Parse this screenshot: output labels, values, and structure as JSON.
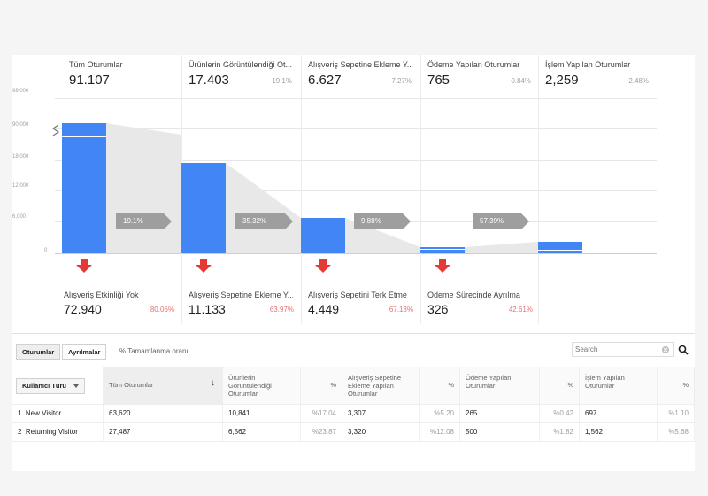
{
  "stages": [
    {
      "label": "Tüm Oturumlar",
      "value": "91.107",
      "pct": ""
    },
    {
      "label": "Ürünlerin Görüntülendiği Ot...",
      "value": "17.403",
      "pct": "19.1%"
    },
    {
      "label": "Alışveriş Sepetine Ekleme Y...",
      "value": "6.627",
      "pct": "7.27%"
    },
    {
      "label": "Ödeme Yapılan Oturumlar",
      "value": "765",
      "pct": "0.84%"
    },
    {
      "label": "İşlem Yapılan Oturumlar",
      "value": "2,259",
      "pct": "2.48%"
    }
  ],
  "axis_ticks": [
    "98,000",
    "90,000",
    "18,000",
    "12,000",
    "6,000",
    "0"
  ],
  "progress_tags": [
    "19.1%",
    "35.32%",
    "9.88%",
    "57.39%"
  ],
  "exits": [
    {
      "label": "Alışveriş Etkinliği Yok",
      "value": "72.940",
      "pct": "80.06%"
    },
    {
      "label": "Alışveriş Sepetine Ekleme Y...",
      "value": "11.133",
      "pct": "63.97%"
    },
    {
      "label": "Alışveriş Sepetini Terk Etme",
      "value": "4.449",
      "pct": "67.13%"
    },
    {
      "label": "Ödeme Sürecinde Ayrılma",
      "value": "326",
      "pct": "42.61%"
    }
  ],
  "toolbar": {
    "tab_sessions": "Oturumlar",
    "tab_exits": "Ayrılmalar",
    "completion_rate": "% Tamamlanma oranı",
    "search_placeholder": "Search"
  },
  "table": {
    "user_type_dropdown": "Kullanıcı Türü",
    "headers": [
      "Tüm Oturumlar",
      "Ürünlerin Görüntülendiği Oturumlar",
      "%",
      "Alışveriş Sepetine Ekleme Yapılan Oturumlar",
      "%",
      "Ödeme Yapılan Oturumlar",
      "%",
      "İşlem Yapılan Oturumlar",
      "%"
    ],
    "rows": [
      {
        "index": "1",
        "type": "New Visitor",
        "all": "63,620",
        "viewed": "10,841",
        "viewed_pct": "%17.04",
        "cart": "3,307",
        "cart_pct": "%5.20",
        "checkout": "265",
        "checkout_pct": "%0.42",
        "trans": "697",
        "trans_pct": "%1.10"
      },
      {
        "index": "2",
        "type": "Returning Visitor",
        "all": "27,487",
        "viewed": "6,562",
        "viewed_pct": "%23.87",
        "cart": "3,320",
        "cart_pct": "%12.08",
        "checkout": "500",
        "checkout_pct": "%1.82",
        "trans": "1,562",
        "trans_pct": "%5.68"
      }
    ]
  },
  "colors": {
    "bar": "#4285f4",
    "exit_arrow": "#e53935",
    "exit_pct": "#e57373",
    "tag": "#9e9e9e"
  }
}
